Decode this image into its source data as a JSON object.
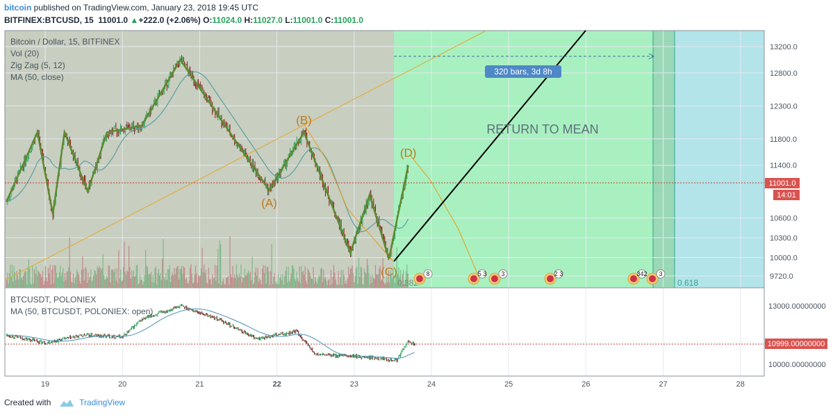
{
  "header": {
    "user": "bitcoin",
    "published": "published on TradingView.com, January 23, 2018 19:45 UTC",
    "symbol": "BITFINEX:BTCUSD, 15",
    "price": "11001.0",
    "change": "+222.0 (+2.06%)",
    "o_label": "O:",
    "o": "11024.0",
    "h_label": "H:",
    "h": "11027.0",
    "l_label": "L:",
    "l": "11001.0",
    "c_label": "C:",
    "c": "11001.0"
  },
  "footer": {
    "created_with": "Created with",
    "brand": "TradingView"
  },
  "main_pane": {
    "legend": [
      "Bitcoin / Dollar, 15, BITFINEX",
      "Vol (20)",
      "Zig Zag (5, 12)",
      "MA (50, close)"
    ],
    "annotation": "RETURN TO MEAN",
    "range_label": "320 bars, 3d 8h",
    "price_tag": "11001.0",
    "time_tag": "14:01",
    "fib_labels": [
      "0.382",
      "0.618"
    ],
    "event_badges": [
      "8",
      "5 3",
      "3",
      "2 3",
      "342",
      "3"
    ]
  },
  "sub_pane": {
    "legend": [
      "BTCUSDT, POLONIEX",
      "MA (50, BTCUSDT, POLONIEX: open)"
    ],
    "price_tag": "10999.00000000"
  },
  "colors": {
    "up": "#26a25a",
    "down": "#8b1a1a",
    "zigzag": "#5d8a2e",
    "ma": "#5aa0a0",
    "fib": "#e69f1e",
    "green_zone": "#a8f0c0",
    "teal_zone": "#b2e4ea",
    "shade": "#c8cec0",
    "price_line": "#c0392b"
  },
  "chart_data": [
    {
      "type": "line",
      "title": "Bitcoin / Dollar, 15, BITFINEX",
      "x_ticks": [
        "19",
        "20",
        "21",
        "22",
        "23",
        "24",
        "25",
        "26",
        "27",
        "28"
      ],
      "y_ticks": [
        "13200.0",
        "12800.0",
        "12300.0",
        "11800.0",
        "11400.0",
        "10600.0",
        "10300.0",
        "10000.0",
        "9720.0"
      ],
      "ylim": [
        9600,
        13400
      ],
      "series": [
        {
          "name": "Zig Zag (5, 12)",
          "x": [
            18.5,
            18.9,
            19.1,
            19.25,
            19.55,
            19.8,
            20.25,
            20.75,
            21.9,
            22.35,
            22.95,
            23.2,
            23.45,
            23.7
          ],
          "values": [
            10850,
            11900,
            10660,
            11900,
            11000,
            11900,
            12000,
            13000,
            11020,
            11900,
            10070,
            10950,
            9980,
            11400
          ]
        }
      ],
      "labels": [
        "(A)",
        "(B)",
        "(C)",
        "(D)"
      ],
      "label_points": [
        {
          "label": "(A)",
          "x": 21.9,
          "y": 11020
        },
        {
          "label": "(B)",
          "x": 22.35,
          "y": 11900
        },
        {
          "label": "(C)",
          "x": 23.45,
          "y": 9980
        },
        {
          "label": "(D)",
          "x": 23.7,
          "y": 11400
        }
      ],
      "last_price": 11001.0,
      "grid": true
    },
    {
      "type": "line",
      "title": "BTCUSDT, POLONIEX",
      "y_ticks": [
        "13000.00000000",
        "10000.00000000"
      ],
      "ylim": [
        9600,
        13600
      ],
      "series": [
        {
          "name": "BTCUSDT, POLONIEX",
          "x": [
            18.5,
            19.0,
            19.5,
            20.0,
            20.25,
            20.75,
            21.25,
            21.75,
            22.25,
            22.5,
            23.0,
            23.4,
            23.55,
            23.7,
            23.8
          ],
          "values": [
            11500,
            11100,
            11500,
            11400,
            12300,
            13000,
            12300,
            11300,
            11700,
            10500,
            10400,
            10300,
            10200,
            11200,
            11000
          ]
        }
      ],
      "last_price": 10999.0,
      "grid": true
    }
  ]
}
